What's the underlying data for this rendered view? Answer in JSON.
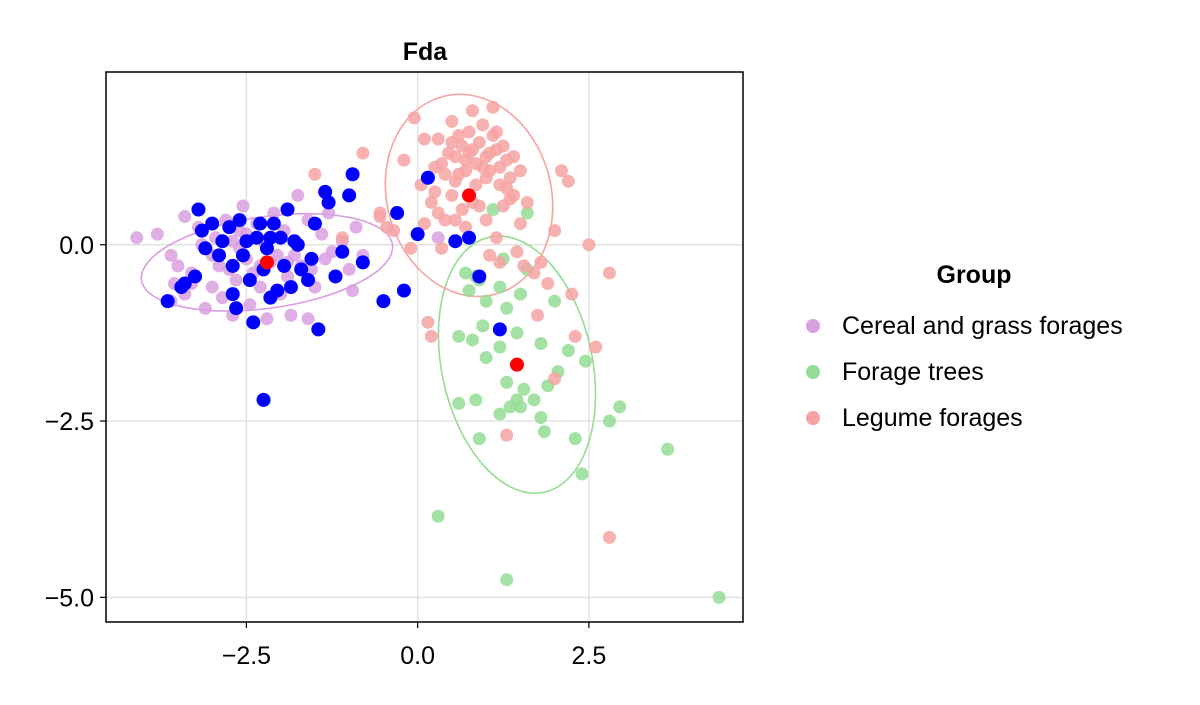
{
  "chart_data": {
    "type": "scatter",
    "title": "Fda",
    "xlabel": "",
    "ylabel": "",
    "xlim": [
      -4.55,
      4.75
    ],
    "ylim": [
      -5.35,
      2.45
    ],
    "xticks": [
      -2.5,
      0.0,
      2.5
    ],
    "xtick_labels": [
      "−2.5",
      "0.0",
      "2.5"
    ],
    "yticks": [
      0.0,
      -2.5,
      -5.0
    ],
    "ytick_labels": [
      "0.0",
      "−2.5",
      "−5.0"
    ],
    "grid": true,
    "legend": {
      "title": "Group",
      "position": "right",
      "entries": [
        "Cereal and grass forages",
        "Forage trees",
        "Legume forages"
      ]
    },
    "colors": {
      "cereal": "#d9a0e0",
      "trees": "#94dc94",
      "legume": "#f7a3a3",
      "highlight": "#0000ff",
      "centroid": "#ff0000"
    },
    "series": [
      {
        "name": "Cereal and grass forages",
        "color": "#d9a0e0",
        "points": [
          [
            -4.1,
            0.1
          ],
          [
            -3.8,
            0.15
          ],
          [
            -3.6,
            -0.15
          ],
          [
            -3.5,
            -0.3
          ],
          [
            -3.55,
            -0.55
          ],
          [
            -3.4,
            -0.7
          ],
          [
            -3.3,
            -0.4
          ],
          [
            -3.4,
            0.4
          ],
          [
            -3.2,
            0.25
          ],
          [
            -3.1,
            -0.9
          ],
          [
            -3.0,
            -0.6
          ],
          [
            -2.9,
            -0.3
          ],
          [
            -2.95,
            0.1
          ],
          [
            -2.8,
            0.35
          ],
          [
            -2.85,
            -0.75
          ],
          [
            -2.7,
            -1.0
          ],
          [
            -2.65,
            -0.5
          ],
          [
            -2.6,
            0.2
          ],
          [
            -2.55,
            0.55
          ],
          [
            -2.5,
            -0.2
          ],
          [
            -2.45,
            -0.85
          ],
          [
            -2.4,
            -0.4
          ],
          [
            -2.35,
            0.3
          ],
          [
            -2.3,
            -0.6
          ],
          [
            -2.25,
            0.05
          ],
          [
            -2.2,
            -1.05
          ],
          [
            -2.15,
            -0.25
          ],
          [
            -2.1,
            0.45
          ],
          [
            -2.0,
            -0.7
          ],
          [
            -1.95,
            0.2
          ],
          [
            -1.9,
            -0.45
          ],
          [
            -1.85,
            -1.0
          ],
          [
            -1.8,
            -0.15
          ],
          [
            -1.75,
            0.7
          ],
          [
            -1.7,
            -0.3
          ],
          [
            -1.6,
            0.35
          ],
          [
            -1.6,
            -1.05
          ],
          [
            -1.5,
            -0.6
          ],
          [
            -1.4,
            0.15
          ],
          [
            -1.35,
            -0.2
          ],
          [
            -1.3,
            0.45
          ],
          [
            -1.2,
            -0.45
          ],
          [
            -1.1,
            0.05
          ],
          [
            -1.0,
            -0.35
          ],
          [
            -0.95,
            -0.65
          ],
          [
            -0.9,
            0.25
          ],
          [
            -0.8,
            -0.15
          ],
          [
            -3.15,
            0.0
          ],
          [
            -3.0,
            -0.15
          ],
          [
            -2.75,
            -0.35
          ],
          [
            -2.6,
            -0.05
          ],
          [
            -2.5,
            0.15
          ],
          [
            -2.3,
            -0.3
          ],
          [
            -2.05,
            -0.15
          ],
          [
            -1.9,
            -0.25
          ],
          [
            -2.7,
            0.05
          ],
          [
            -3.3,
            -0.55
          ],
          [
            -1.55,
            -0.35
          ],
          [
            -1.25,
            -0.1
          ],
          [
            -3.6,
            -0.8
          ],
          [
            0.3,
            0.1
          ]
        ]
      },
      {
        "name": "Forage trees",
        "color": "#94dc94",
        "points": [
          [
            1.1,
            0.5
          ],
          [
            1.6,
            0.45
          ],
          [
            0.7,
            -0.4
          ],
          [
            0.75,
            -0.65
          ],
          [
            0.9,
            -0.5
          ],
          [
            1.0,
            -0.8
          ],
          [
            1.2,
            -0.6
          ],
          [
            1.3,
            -0.9
          ],
          [
            1.5,
            -0.7
          ],
          [
            0.6,
            -1.3
          ],
          [
            0.8,
            -1.35
          ],
          [
            1.0,
            -1.6
          ],
          [
            1.2,
            -1.45
          ],
          [
            1.45,
            -1.25
          ],
          [
            1.8,
            -1.4
          ],
          [
            2.0,
            -0.8
          ],
          [
            2.05,
            -1.8
          ],
          [
            1.3,
            -1.95
          ],
          [
            1.55,
            -2.05
          ],
          [
            1.7,
            -2.2
          ],
          [
            1.45,
            -2.2
          ],
          [
            1.5,
            -2.3
          ],
          [
            1.35,
            -2.3
          ],
          [
            1.2,
            -2.4
          ],
          [
            1.8,
            -2.45
          ],
          [
            0.6,
            -2.25
          ],
          [
            0.85,
            -2.2
          ],
          [
            0.9,
            -2.75
          ],
          [
            1.85,
            -2.65
          ],
          [
            2.3,
            -2.75
          ],
          [
            2.4,
            -3.25
          ],
          [
            2.8,
            -2.5
          ],
          [
            2.95,
            -2.3
          ],
          [
            3.65,
            -2.9
          ],
          [
            4.4,
            -5.0
          ],
          [
            0.3,
            -3.85
          ],
          [
            1.3,
            -4.75
          ],
          [
            2.45,
            -1.65
          ],
          [
            1.6,
            -0.35
          ],
          [
            2.2,
            -1.5
          ],
          [
            0.95,
            -1.15
          ],
          [
            1.9,
            -2.0
          ],
          [
            1.25,
            -0.2
          ],
          [
            0.85,
            -0.45
          ]
        ]
      },
      {
        "name": "Legume forages",
        "color": "#f7a3a3",
        "points": [
          [
            -1.5,
            1.0
          ],
          [
            -1.1,
            0.1
          ],
          [
            -0.8,
            1.3
          ],
          [
            -0.55,
            0.45
          ],
          [
            -0.45,
            0.25
          ],
          [
            -0.3,
            0.45
          ],
          [
            -0.2,
            1.2
          ],
          [
            -0.1,
            -0.05
          ],
          [
            0.05,
            0.85
          ],
          [
            0.1,
            0.3
          ],
          [
            0.2,
            0.6
          ],
          [
            0.25,
            0.75
          ],
          [
            0.3,
            0.45
          ],
          [
            0.4,
            0.35
          ],
          [
            0.5,
            0.7
          ],
          [
            0.55,
            0.35
          ],
          [
            0.65,
            0.5
          ],
          [
            0.7,
            0.25
          ],
          [
            0.8,
            0.6
          ],
          [
            0.9,
            0.55
          ],
          [
            1.0,
            0.35
          ],
          [
            1.05,
            -0.15
          ],
          [
            1.15,
            0.1
          ],
          [
            1.2,
            -0.25
          ],
          [
            1.25,
            0.55
          ],
          [
            1.35,
            0.65
          ],
          [
            1.45,
            -0.1
          ],
          [
            1.5,
            0.3
          ],
          [
            1.55,
            -0.3
          ],
          [
            1.6,
            0.6
          ],
          [
            1.7,
            -0.4
          ],
          [
            1.8,
            -0.25
          ],
          [
            1.9,
            -0.55
          ],
          [
            2.0,
            0.2
          ],
          [
            2.1,
            1.05
          ],
          [
            2.2,
            0.9
          ],
          [
            2.25,
            -0.7
          ],
          [
            2.3,
            -1.3
          ],
          [
            2.5,
            0.0
          ],
          [
            2.6,
            -1.45
          ],
          [
            2.8,
            -0.4
          ],
          [
            2.8,
            -4.15
          ],
          [
            1.3,
            -2.7
          ],
          [
            1.75,
            -1.0
          ],
          [
            2.0,
            -1.9
          ],
          [
            0.15,
            -1.1
          ],
          [
            0.2,
            -1.3
          ],
          [
            -0.05,
            1.8
          ],
          [
            0.1,
            1.5
          ],
          [
            0.3,
            1.5
          ],
          [
            0.35,
            1.15
          ],
          [
            0.45,
            1.3
          ],
          [
            0.5,
            1.45
          ],
          [
            0.55,
            1.25
          ],
          [
            0.6,
            1.55
          ],
          [
            0.65,
            1.4
          ],
          [
            0.7,
            1.2
          ],
          [
            0.75,
            1.6
          ],
          [
            0.8,
            1.35
          ],
          [
            0.85,
            1.15
          ],
          [
            0.9,
            1.45
          ],
          [
            0.95,
            1.7
          ],
          [
            1.0,
            1.25
          ],
          [
            1.05,
            1.05
          ],
          [
            1.1,
            1.55
          ],
          [
            1.15,
            1.35
          ],
          [
            1.2,
            1.1
          ],
          [
            1.25,
            1.4
          ],
          [
            1.3,
            1.2
          ],
          [
            1.35,
            0.95
          ],
          [
            1.4,
            1.25
          ],
          [
            1.5,
            1.05
          ],
          [
            1.1,
            1.95
          ],
          [
            0.5,
            1.75
          ],
          [
            0.8,
            1.9
          ],
          [
            0.7,
            1.05
          ],
          [
            0.85,
            0.85
          ],
          [
            1.0,
            0.95
          ],
          [
            1.2,
            0.85
          ],
          [
            1.3,
            0.8
          ],
          [
            0.55,
            0.9
          ],
          [
            0.4,
            1.0
          ],
          [
            0.25,
            1.1
          ],
          [
            0.95,
            1.1
          ],
          [
            1.05,
            1.3
          ],
          [
            1.15,
            1.6
          ],
          [
            0.6,
            1.0
          ],
          [
            0.75,
            1.3
          ],
          [
            1.4,
            0.7
          ],
          [
            -0.55,
            0.4
          ],
          [
            -0.35,
            0.2
          ],
          [
            0.35,
            -0.05
          ]
        ]
      }
    ],
    "highlighted_points": {
      "color": "#0000ff",
      "points": [
        [
          -3.65,
          -0.8
        ],
        [
          -3.45,
          -0.6
        ],
        [
          -3.25,
          -0.45
        ],
        [
          -3.15,
          0.2
        ],
        [
          -3.1,
          -0.05
        ],
        [
          -3.0,
          0.3
        ],
        [
          -2.9,
          -0.15
        ],
        [
          -2.85,
          0.05
        ],
        [
          -2.75,
          0.25
        ],
        [
          -2.7,
          -0.7
        ],
        [
          -2.65,
          -0.9
        ],
        [
          -2.6,
          0.35
        ],
        [
          -2.55,
          -0.15
        ],
        [
          -2.5,
          0.05
        ],
        [
          -2.45,
          -0.5
        ],
        [
          -2.4,
          -1.1
        ],
        [
          -2.35,
          0.1
        ],
        [
          -2.3,
          0.3
        ],
        [
          -2.25,
          -0.35
        ],
        [
          -2.2,
          -0.05
        ],
        [
          -2.15,
          -0.75
        ],
        [
          -2.1,
          0.3
        ],
        [
          -2.05,
          -0.65
        ],
        [
          -2.0,
          0.1
        ],
        [
          -1.95,
          -0.3
        ],
        [
          -1.9,
          0.5
        ],
        [
          -1.85,
          -0.6
        ],
        [
          -1.8,
          0.05
        ],
        [
          -1.7,
          -0.35
        ],
        [
          -1.6,
          -0.5
        ],
        [
          -1.55,
          -0.2
        ],
        [
          -1.5,
          0.3
        ],
        [
          -1.45,
          -1.2
        ],
        [
          -1.35,
          0.75
        ],
        [
          -1.3,
          0.6
        ],
        [
          -1.2,
          -0.45
        ],
        [
          -1.1,
          -0.1
        ],
        [
          -1.0,
          0.7
        ],
        [
          -0.95,
          1.0
        ],
        [
          -0.8,
          -0.25
        ],
        [
          -0.5,
          -0.8
        ],
        [
          -0.3,
          0.45
        ],
        [
          -0.2,
          -0.65
        ],
        [
          0.0,
          0.15
        ],
        [
          0.15,
          0.95
        ],
        [
          0.55,
          0.05
        ],
        [
          0.75,
          0.1
        ],
        [
          0.9,
          -0.45
        ],
        [
          1.2,
          -1.2
        ],
        [
          -2.25,
          -2.2
        ],
        [
          -3.2,
          0.5
        ],
        [
          -2.7,
          -0.3
        ],
        [
          -2.15,
          0.1
        ],
        [
          -1.75,
          0.0
        ],
        [
          -3.4,
          -0.55
        ]
      ]
    },
    "centroids": {
      "color": "#ff0000",
      "points": [
        [
          -2.2,
          -0.25
        ],
        [
          0.75,
          0.7
        ],
        [
          1.45,
          -1.7
        ]
      ]
    },
    "ellipses": [
      {
        "group": "Cereal and grass forages",
        "color": "#d9a0e0",
        "center": [
          -2.2,
          -0.25
        ],
        "rx": 1.85,
        "ry": 0.65,
        "angle_deg": 8
      },
      {
        "group": "Forage trees",
        "color": "#94dc94",
        "center": [
          1.45,
          -1.7
        ],
        "rx": 1.1,
        "ry": 1.85,
        "angle_deg": 12
      },
      {
        "group": "Legume forages",
        "color": "#f7a3a3",
        "center": [
          0.75,
          0.7
        ],
        "rx": 1.2,
        "ry": 1.45,
        "angle_deg": 15
      }
    ]
  }
}
